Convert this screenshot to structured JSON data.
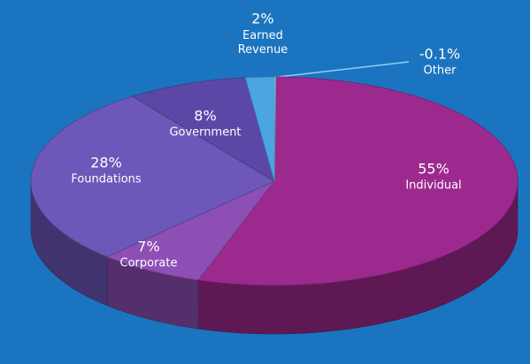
{
  "chart_data": {
    "type": "pie",
    "categories": [
      "Individual",
      "Corporate",
      "Foundations",
      "Government",
      "Earned Revenue",
      "Other"
    ],
    "values": [
      55,
      7,
      28,
      8,
      2,
      -0.1
    ],
    "value_labels": [
      "55%",
      "7%",
      "28%",
      "8%",
      "2%",
      "-0.1%"
    ],
    "colors": [
      "#9c2a8e",
      "#8d4fb3",
      "#6d57b8",
      "#5b48a6",
      "#4aa5e2",
      "#7cc3ef"
    ]
  }
}
